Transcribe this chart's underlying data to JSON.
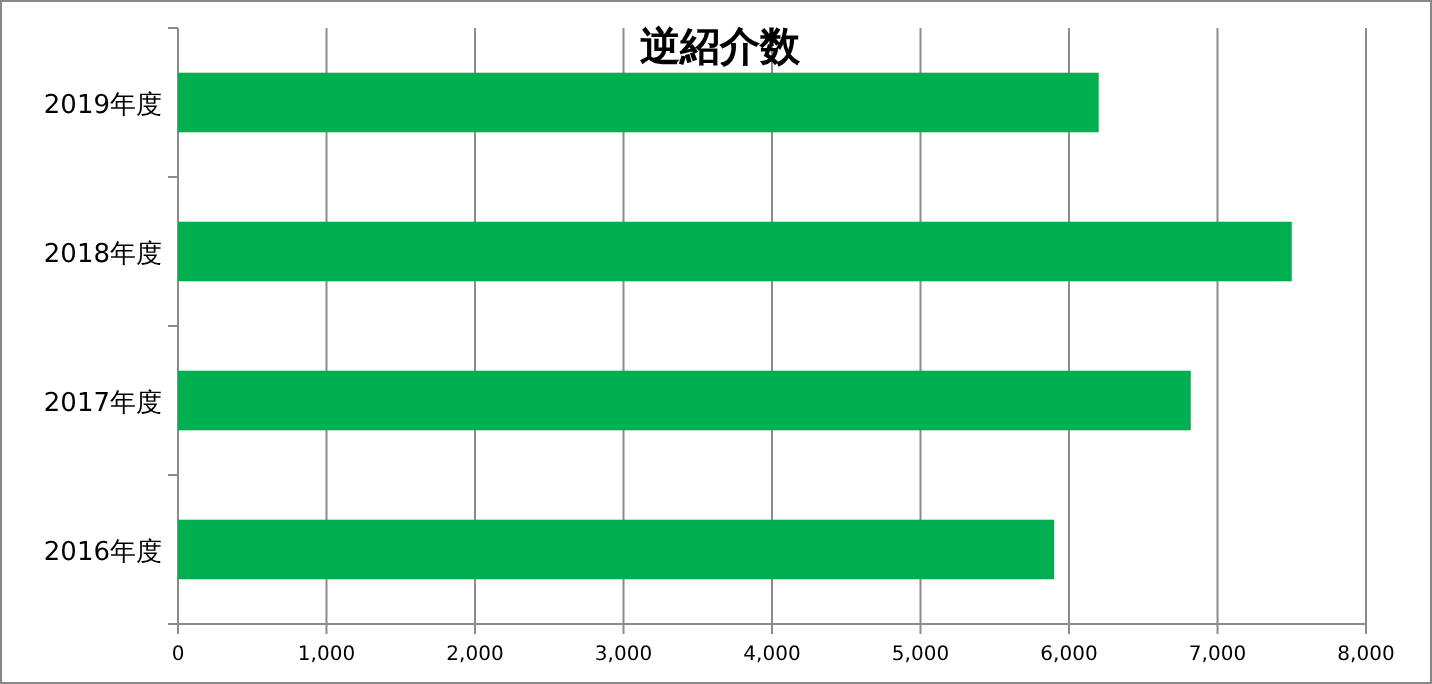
{
  "chart_data": {
    "type": "bar",
    "orientation": "horizontal",
    "title": "逆紹介数",
    "categories": [
      "2019年度",
      "2018年度",
      "2017年度",
      "2016年度"
    ],
    "values": [
      6200,
      7500,
      6820,
      5900
    ],
    "color": "#00b050",
    "xlim": [
      0,
      8000
    ],
    "xticks": [
      {
        "value": 0,
        "label": "0"
      },
      {
        "value": 1000,
        "label": "1,000"
      },
      {
        "value": 2000,
        "label": "2,000"
      },
      {
        "value": 3000,
        "label": "3,000"
      },
      {
        "value": 4000,
        "label": "4,000"
      },
      {
        "value": 5000,
        "label": "5,000"
      },
      {
        "value": 6000,
        "label": "6,000"
      },
      {
        "value": 7000,
        "label": "7,000"
      },
      {
        "value": 8000,
        "label": "8,000"
      }
    ],
    "grid": "x"
  }
}
